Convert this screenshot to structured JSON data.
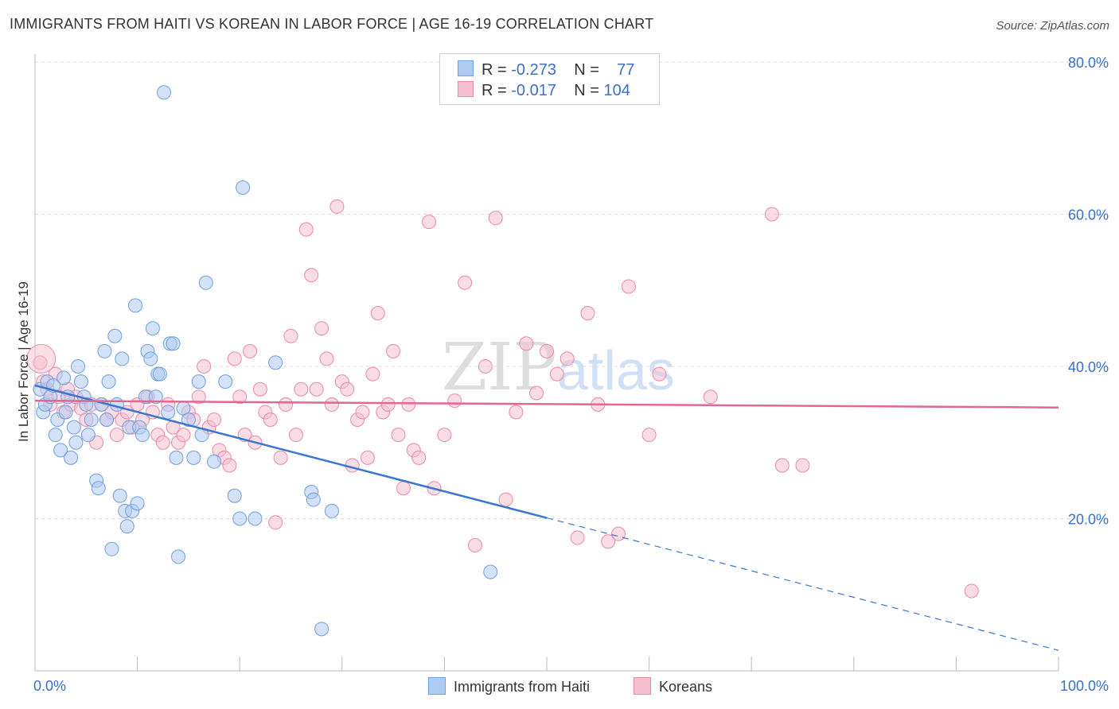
{
  "title": "IMMIGRANTS FROM HAITI VS KOREAN IN LABOR FORCE | AGE 16-19 CORRELATION CHART",
  "source": "Source: ZipAtlas.com",
  "watermark_a": "ZIP",
  "watermark_b": "atlas",
  "legend_top": [
    {
      "r_label": "R =",
      "r": "-0.273",
      "n_label": "N =",
      "n": "77"
    },
    {
      "r_label": "R =",
      "r": "-0.017",
      "n_label": "N =",
      "n": "104"
    }
  ],
  "colors": {
    "haiti_fill": "#aecbf2",
    "haiti_stroke": "#6f9fe0",
    "haiti_line": "#3a76d0",
    "korean_fill": "#f5bfd0",
    "korean_stroke": "#e88aa8",
    "korean_line": "#e2688f",
    "tick_text": "#3a6fc9",
    "grid": "#dcdcdc"
  },
  "chart_data": {
    "type": "scatter",
    "title": "IMMIGRANTS FROM HAITI VS KOREAN IN LABOR FORCE | AGE 16-19 CORRELATION CHART",
    "xlabel": "",
    "ylabel": "In Labor Force | Age 16-19",
    "xlim": [
      0,
      100
    ],
    "ylim": [
      0,
      80
    ],
    "x_tick_labels": [
      "0.0%",
      "100.0%"
    ],
    "y_ticks": [
      20,
      40,
      60,
      80
    ],
    "y_tick_labels": [
      "20.0%",
      "40.0%",
      "60.0%",
      "80.0%"
    ],
    "grid": true,
    "legend_position": "bottom",
    "series": [
      {
        "name": "Immigrants from Haiti",
        "r": -0.273,
        "n": 77,
        "trend": {
          "x0": 0,
          "y0": 37.5,
          "x1": 100,
          "y1": 2.7,
          "solid_until": 50
        },
        "points": [
          [
            0.5,
            37
          ],
          [
            0.8,
            34
          ],
          [
            1,
            35
          ],
          [
            1.2,
            38
          ],
          [
            1.5,
            36
          ],
          [
            1.8,
            37.5
          ],
          [
            2,
            31
          ],
          [
            2.2,
            33
          ],
          [
            2.5,
            29
          ],
          [
            2.8,
            38.5
          ],
          [
            3,
            34
          ],
          [
            3.2,
            36
          ],
          [
            3.5,
            28
          ],
          [
            3.8,
            32
          ],
          [
            4,
            30
          ],
          [
            4.2,
            40
          ],
          [
            4.5,
            38
          ],
          [
            4.8,
            36
          ],
          [
            5,
            35
          ],
          [
            5.2,
            31
          ],
          [
            5.5,
            33
          ],
          [
            6,
            25
          ],
          [
            6.2,
            24
          ],
          [
            6.5,
            35
          ],
          [
            6.8,
            42
          ],
          [
            7,
            33
          ],
          [
            7.2,
            38
          ],
          [
            7.5,
            16
          ],
          [
            7.8,
            44
          ],
          [
            8,
            35
          ],
          [
            8.3,
            23
          ],
          [
            8.5,
            41
          ],
          [
            8.8,
            21
          ],
          [
            9,
            19
          ],
          [
            9.2,
            32
          ],
          [
            9.5,
            21
          ],
          [
            9.8,
            48
          ],
          [
            10,
            22
          ],
          [
            10.2,
            32
          ],
          [
            10.5,
            31
          ],
          [
            10.8,
            36
          ],
          [
            11,
            42
          ],
          [
            11.3,
            41
          ],
          [
            11.5,
            45
          ],
          [
            11.8,
            36
          ],
          [
            12,
            39
          ],
          [
            12.2,
            39
          ],
          [
            12.6,
            76
          ],
          [
            13,
            34
          ],
          [
            13.2,
            43
          ],
          [
            13.5,
            43
          ],
          [
            13.8,
            28
          ],
          [
            14,
            15
          ],
          [
            14.5,
            34.5
          ],
          [
            15,
            33
          ],
          [
            15.5,
            28
          ],
          [
            16,
            38
          ],
          [
            16.3,
            31
          ],
          [
            16.7,
            51
          ],
          [
            17.5,
            27.5
          ],
          [
            18.6,
            38
          ],
          [
            19.5,
            23
          ],
          [
            20,
            20
          ],
          [
            20.3,
            63.5
          ],
          [
            21.5,
            20
          ],
          [
            23.5,
            40.5
          ],
          [
            27,
            23.5
          ],
          [
            27.2,
            22.5
          ],
          [
            28,
            5.5
          ],
          [
            29,
            21
          ],
          [
            44.5,
            13
          ]
        ]
      },
      {
        "name": "Koreans",
        "r": -0.017,
        "n": 104,
        "trend": {
          "x0": 0,
          "y0": 35.5,
          "x1": 100,
          "y1": 34.6
        },
        "points": [
          [
            0.5,
            40.5
          ],
          [
            0.8,
            38
          ],
          [
            1.2,
            37
          ],
          [
            1.5,
            35
          ],
          [
            2,
            39
          ],
          [
            2.3,
            36
          ],
          [
            2.8,
            34
          ],
          [
            3.2,
            37
          ],
          [
            3.5,
            35
          ],
          [
            4,
            36
          ],
          [
            4.5,
            34.5
          ],
          [
            5,
            33
          ],
          [
            5.5,
            35
          ],
          [
            6,
            30
          ],
          [
            6.5,
            35
          ],
          [
            7,
            33
          ],
          [
            7.5,
            34
          ],
          [
            8,
            31
          ],
          [
            8.5,
            33
          ],
          [
            9,
            34
          ],
          [
            9.5,
            32
          ],
          [
            10,
            35
          ],
          [
            10.5,
            33
          ],
          [
            11,
            36
          ],
          [
            11.5,
            34
          ],
          [
            12,
            31
          ],
          [
            12.5,
            30
          ],
          [
            13,
            35
          ],
          [
            13.5,
            32
          ],
          [
            14,
            30
          ],
          [
            14.5,
            31
          ],
          [
            15,
            34
          ],
          [
            15.5,
            33
          ],
          [
            16,
            36
          ],
          [
            16.5,
            40
          ],
          [
            17,
            32
          ],
          [
            17.5,
            33
          ],
          [
            18,
            29
          ],
          [
            18.5,
            28
          ],
          [
            19,
            27
          ],
          [
            19.5,
            41
          ],
          [
            20,
            36
          ],
          [
            20.5,
            31
          ],
          [
            21,
            42
          ],
          [
            21.5,
            30
          ],
          [
            22,
            37
          ],
          [
            22.5,
            34
          ],
          [
            23,
            33
          ],
          [
            23.5,
            19.5
          ],
          [
            24,
            28
          ],
          [
            24.5,
            35
          ],
          [
            25,
            44
          ],
          [
            25.5,
            31
          ],
          [
            26,
            37
          ],
          [
            26.5,
            58
          ],
          [
            27,
            52
          ],
          [
            27.5,
            37
          ],
          [
            28,
            45
          ],
          [
            28.5,
            41
          ],
          [
            29,
            35
          ],
          [
            29.5,
            61
          ],
          [
            30,
            38
          ],
          [
            30.5,
            37
          ],
          [
            31,
            27
          ],
          [
            31.5,
            33
          ],
          [
            32,
            34
          ],
          [
            32.5,
            28
          ],
          [
            33,
            39
          ],
          [
            33.5,
            47
          ],
          [
            34,
            34
          ],
          [
            34.5,
            35
          ],
          [
            35,
            42
          ],
          [
            35.5,
            31
          ],
          [
            36,
            24
          ],
          [
            36.5,
            35
          ],
          [
            37,
            29
          ],
          [
            37.5,
            28
          ],
          [
            38.5,
            59
          ],
          [
            39,
            24
          ],
          [
            40,
            31
          ],
          [
            41,
            35.5
          ],
          [
            42,
            51
          ],
          [
            43,
            16.5
          ],
          [
            44,
            40
          ],
          [
            45,
            59.5
          ],
          [
            46,
            22.5
          ],
          [
            47,
            34
          ],
          [
            48,
            43
          ],
          [
            49,
            36.5
          ],
          [
            50,
            42
          ],
          [
            51,
            39
          ],
          [
            52,
            41
          ],
          [
            53,
            17.5
          ],
          [
            54,
            47
          ],
          [
            55,
            35
          ],
          [
            56,
            17
          ],
          [
            57,
            18
          ],
          [
            58,
            50.5
          ],
          [
            60,
            31
          ],
          [
            61,
            39
          ],
          [
            66,
            36
          ],
          [
            72,
            60
          ],
          [
            73,
            27
          ],
          [
            75,
            27
          ],
          [
            91.5,
            10.5
          ]
        ]
      }
    ]
  },
  "bottom_legend": [
    "Immigrants from Haiti",
    "Koreans"
  ]
}
